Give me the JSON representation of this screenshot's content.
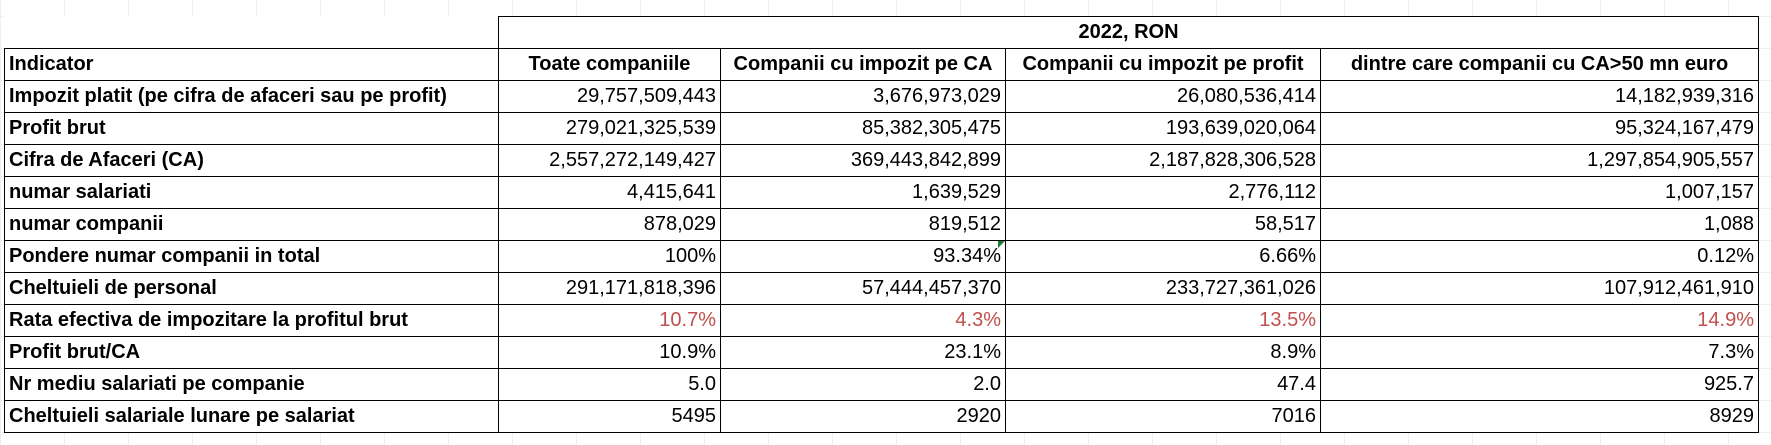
{
  "table": {
    "group_header": "2022, RON",
    "headers": [
      "Indicator",
      "Toate companiile",
      "Companii cu impozit pe CA",
      "Companii cu impozit pe profit",
      "dintre care companii cu CA>50 mn euro"
    ],
    "rows": [
      {
        "label": "Impozit platit (pe cifra de afaceri sau pe profit)",
        "values": [
          "29,757,509,443",
          "3,676,973,029",
          "26,080,536,414",
          "14,182,939,316"
        ]
      },
      {
        "label": "Profit brut",
        "values": [
          "279,021,325,539",
          "85,382,305,475",
          "193,639,020,064",
          "95,324,167,479"
        ]
      },
      {
        "label": "Cifra de Afaceri (CA)",
        "values": [
          "2,557,272,149,427",
          "369,443,842,899",
          "2,187,828,306,528",
          "1,297,854,905,557"
        ]
      },
      {
        "label": "numar salariati",
        "values": [
          "4,415,641",
          "1,639,529",
          "2,776,112",
          "1,007,157"
        ]
      },
      {
        "label": "numar companii",
        "values": [
          "878,029",
          "819,512",
          "58,517",
          "1,088"
        ]
      },
      {
        "label": "Pondere numar companii in total",
        "values": [
          "100%",
          "93.34%",
          "6.66%",
          "0.12%"
        ]
      },
      {
        "label": "Cheltuieli de personal",
        "values": [
          "291,171,818,396",
          "57,444,457,370",
          "233,727,361,026",
          "107,912,461,910"
        ]
      },
      {
        "label": "Rata efectiva de impozitare la profitul brut",
        "values": [
          "10.7%",
          "4.3%",
          "13.5%",
          "14.9%"
        ]
      },
      {
        "label": "Profit brut/CA",
        "values": [
          "10.9%",
          "23.1%",
          "8.9%",
          "7.3%"
        ]
      },
      {
        "label": "Nr mediu salariati pe companie",
        "values": [
          "5.0",
          "2.0",
          "47.4",
          "925.7"
        ]
      },
      {
        "label": "Cheltuieli salariale lunare pe salariat",
        "values": [
          "5495",
          "2920",
          "7016",
          "8929"
        ]
      }
    ]
  },
  "colors": {
    "highlight_text": "#c0504d",
    "comment_flag": "#1e7b34"
  }
}
